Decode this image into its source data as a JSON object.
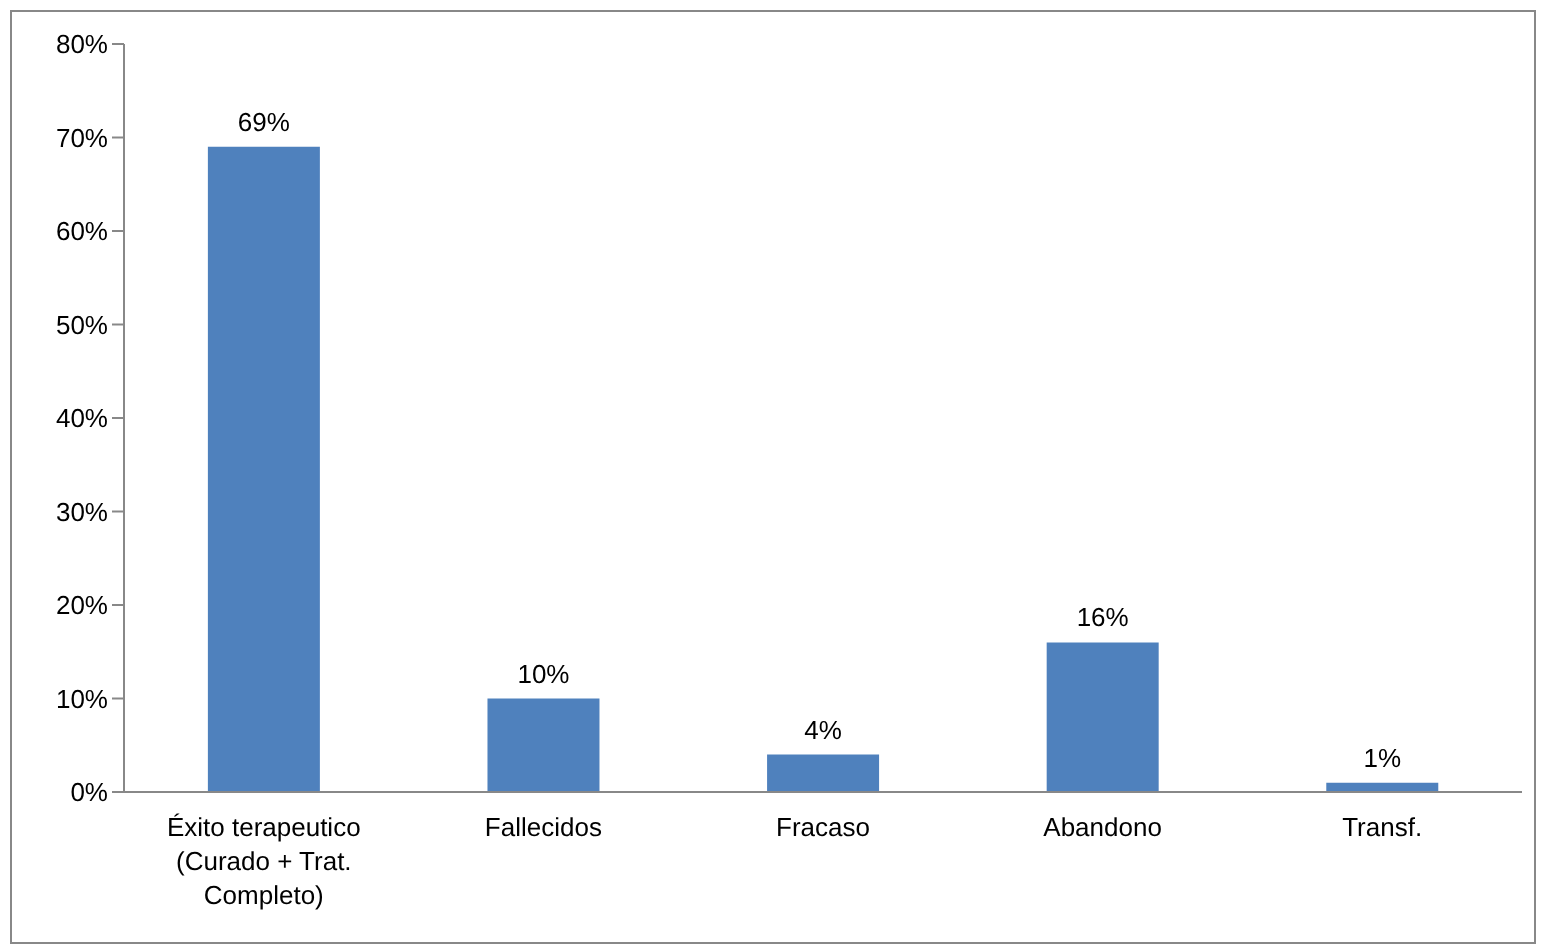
{
  "chart_data": {
    "type": "bar",
    "categories": [
      "Éxito terapeutico (Curado + Trat. Completo)",
      "Fallecidos",
      "Fracaso",
      "Abandono",
      "Transf."
    ],
    "values": [
      69,
      10,
      4,
      16,
      1
    ],
    "value_labels": [
      "69%",
      "10%",
      "4%",
      "16%",
      "1%"
    ],
    "color": "#4f81bd",
    "ylim": [
      0,
      80
    ],
    "yticks": [
      {
        "value": 0,
        "label": "0%"
      },
      {
        "value": 10,
        "label": "10%"
      },
      {
        "value": 20,
        "label": "20%"
      },
      {
        "value": 30,
        "label": "30%"
      },
      {
        "value": 40,
        "label": "40%"
      },
      {
        "value": 50,
        "label": "50%"
      },
      {
        "value": 60,
        "label": "60%"
      },
      {
        "value": 70,
        "label": "70%"
      },
      {
        "value": 80,
        "label": "80%"
      }
    ],
    "grid": false,
    "legend": false
  }
}
